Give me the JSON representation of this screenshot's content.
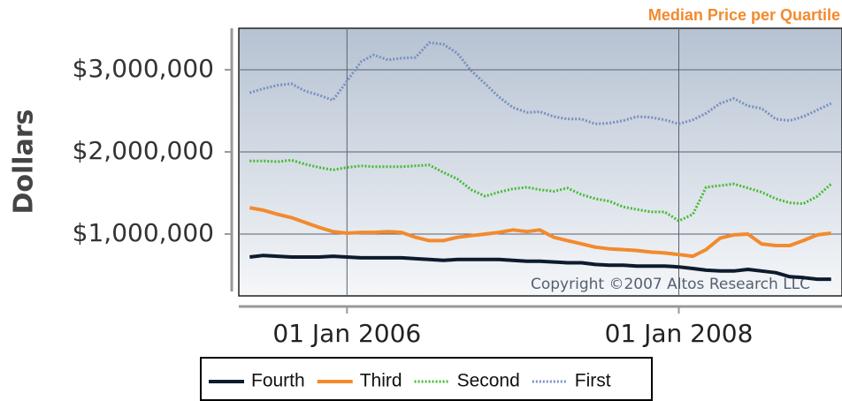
{
  "chart_data": {
    "type": "line",
    "title": "Median Price per Quartile",
    "y_label": "Dollars",
    "annotation": "Copyright ©2007 Altos Research LLC",
    "x": [
      "2005-06-01",
      "2005-07-01",
      "2005-08-01",
      "2005-09-01",
      "2005-10-01",
      "2005-11-01",
      "2005-12-01",
      "2006-01-01",
      "2006-02-01",
      "2006-03-01",
      "2006-04-01",
      "2006-05-01",
      "2006-06-01",
      "2006-07-01",
      "2006-08-01",
      "2006-09-01",
      "2006-10-01",
      "2006-11-01",
      "2006-12-01",
      "2007-01-01",
      "2007-02-01",
      "2007-03-01",
      "2007-04-01",
      "2007-05-01",
      "2007-06-01",
      "2007-07-01",
      "2007-08-01",
      "2007-09-01",
      "2007-10-01",
      "2007-11-01",
      "2007-12-01",
      "2008-01-01",
      "2008-02-01",
      "2008-03-01",
      "2008-04-01",
      "2008-05-01",
      "2008-06-01",
      "2008-07-01",
      "2008-08-01",
      "2008-09-01",
      "2008-10-01",
      "2008-11-01",
      "2008-12-01"
    ],
    "series": [
      {
        "name": "Fourth",
        "color": "#0d1b2e",
        "style": "solid",
        "values": [
          720000,
          740000,
          730000,
          720000,
          720000,
          720000,
          730000,
          720000,
          710000,
          710000,
          710000,
          710000,
          700000,
          690000,
          680000,
          690000,
          690000,
          690000,
          690000,
          680000,
          670000,
          670000,
          660000,
          650000,
          650000,
          630000,
          620000,
          620000,
          610000,
          610000,
          610000,
          600000,
          580000,
          560000,
          550000,
          550000,
          570000,
          550000,
          530000,
          480000,
          470000,
          450000,
          450000
        ]
      },
      {
        "name": "Third",
        "color": "#f28a2e",
        "style": "solid",
        "values": [
          1320000,
          1290000,
          1240000,
          1200000,
          1140000,
          1080000,
          1030000,
          1010000,
          1020000,
          1020000,
          1030000,
          1020000,
          960000,
          920000,
          920000,
          960000,
          980000,
          1000000,
          1020000,
          1050000,
          1030000,
          1050000,
          960000,
          920000,
          880000,
          840000,
          820000,
          810000,
          800000,
          780000,
          770000,
          750000,
          730000,
          810000,
          950000,
          990000,
          1000000,
          880000,
          860000,
          860000,
          920000,
          990000,
          1010000
        ]
      },
      {
        "name": "Second",
        "color": "#44bb33",
        "style": "dotted",
        "values": [
          1890000,
          1890000,
          1880000,
          1900000,
          1850000,
          1810000,
          1780000,
          1810000,
          1830000,
          1820000,
          1820000,
          1820000,
          1830000,
          1840000,
          1750000,
          1670000,
          1540000,
          1460000,
          1510000,
          1550000,
          1570000,
          1540000,
          1520000,
          1560000,
          1480000,
          1430000,
          1400000,
          1330000,
          1300000,
          1270000,
          1270000,
          1160000,
          1240000,
          1570000,
          1590000,
          1610000,
          1560000,
          1510000,
          1430000,
          1380000,
          1370000,
          1460000,
          1610000
        ]
      },
      {
        "name": "First",
        "color": "#7890c0",
        "style": "dotted",
        "values": [
          2720000,
          2770000,
          2810000,
          2830000,
          2740000,
          2690000,
          2630000,
          2860000,
          3100000,
          3180000,
          3120000,
          3140000,
          3150000,
          3330000,
          3310000,
          3200000,
          2990000,
          2830000,
          2670000,
          2540000,
          2480000,
          2490000,
          2430000,
          2400000,
          2400000,
          2340000,
          2350000,
          2380000,
          2430000,
          2420000,
          2390000,
          2340000,
          2390000,
          2470000,
          2590000,
          2650000,
          2560000,
          2530000,
          2400000,
          2380000,
          2430000,
          2510000,
          2590000
        ]
      }
    ],
    "xlim": [
      "2005-05-08",
      "2008-12-25"
    ],
    "xticks": [
      {
        "value": "2006-01-01",
        "label": "01 Jan 2006"
      },
      {
        "value": "2008-01-01",
        "label": "01 Jan 2008"
      }
    ],
    "ylim": [
      247000,
      3505000
    ],
    "yticks": [
      {
        "value": 1000000,
        "label": "$1,000,000"
      },
      {
        "value": 2000000,
        "label": "$2,000,000"
      },
      {
        "value": 3000000,
        "label": "$3,000,000"
      }
    ],
    "grid": true
  }
}
